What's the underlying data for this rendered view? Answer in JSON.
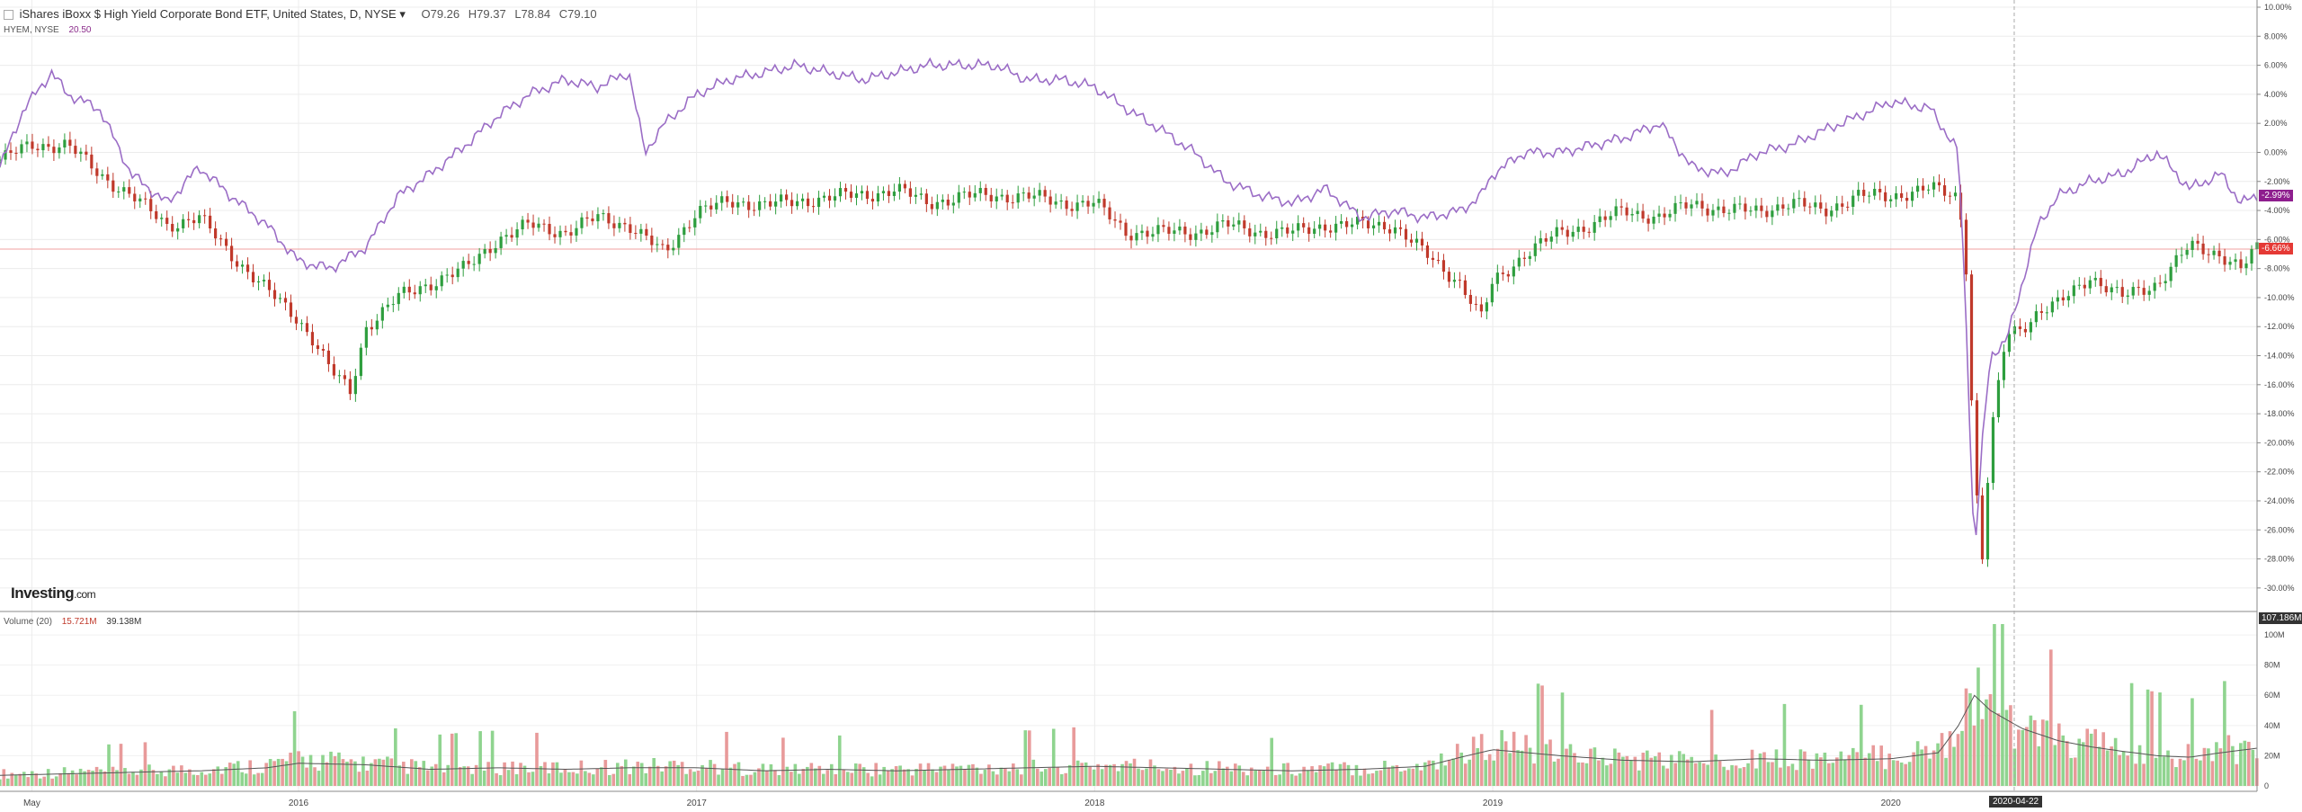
{
  "header": {
    "title": "iShares iBoxx $ High Yield Corporate Bond ETF, United States, D, NYSE",
    "open": "O79.26",
    "high": "H79.37",
    "low": "L78.84",
    "close": "C79.10",
    "compare_symbol": "HYEM, NYSE",
    "compare_value": "20.50"
  },
  "volume_header": {
    "label": "Volume (20)",
    "value1": "15.721M",
    "value2": "39.138M"
  },
  "logo": {
    "text": "Investing",
    "suffix": ".com"
  },
  "badges": {
    "hyem_last": "-2.99%",
    "hyg_last": "-6.66%",
    "volume_top": "107.186M",
    "cursor_date": "2020-04-22"
  },
  "colors": {
    "up": "#2e9e3e",
    "down": "#c0392b",
    "hyem_line": "#9b6dc6",
    "hyg_badge": "#e53935",
    "hyem_badge": "#8e1e8e",
    "volume_up": "#8fd48f",
    "volume_down": "#e89a9a",
    "volume_ma": "#555555"
  },
  "chart_data": {
    "type": "line",
    "title": "iShares iBoxx $ High Yield Corporate Bond ETF, United States, D, NYSE",
    "x_ticks": [
      "May",
      "2016",
      "2017",
      "2018",
      "2019",
      "2020"
    ],
    "y_ticks": [
      "10.00%",
      "8.00%",
      "6.00%",
      "4.00%",
      "2.00%",
      "0.00%",
      "-2.00%",
      "-4.00%",
      "-6.00%",
      "-8.00%",
      "-10.00%",
      "-12.00%",
      "-14.00%",
      "-16.00%",
      "-18.00%",
      "-20.00%",
      "-22.00%",
      "-24.00%",
      "-26.00%",
      "-28.00%",
      "-30.00%"
    ],
    "ylim": [
      -31,
      10
    ],
    "x_range": [
      2015.25,
      2020.92
    ],
    "series": [
      {
        "symbol": "HYG",
        "style": "candlestick",
        "x": [
          2015.25,
          2015.33,
          2015.42,
          2015.5,
          2015.58,
          2015.67,
          2015.75,
          2015.83,
          2015.92,
          2016.0,
          2016.04,
          2016.08,
          2016.13,
          2016.17,
          2016.25,
          2016.33,
          2016.42,
          2016.5,
          2016.58,
          2016.67,
          2016.75,
          2016.83,
          2016.92,
          2017.0,
          2017.08,
          2017.17,
          2017.25,
          2017.33,
          2017.42,
          2017.5,
          2017.58,
          2017.67,
          2017.75,
          2017.83,
          2017.92,
          2018.0,
          2018.08,
          2018.17,
          2018.25,
          2018.33,
          2018.42,
          2018.5,
          2018.58,
          2018.67,
          2018.75,
          2018.83,
          2018.92,
          2018.97,
          2019.0,
          2019.08,
          2019.17,
          2019.25,
          2019.33,
          2019.42,
          2019.5,
          2019.58,
          2019.67,
          2019.75,
          2019.83,
          2019.92,
          2020.0,
          2020.1,
          2020.17,
          2020.19,
          2020.21,
          2020.23,
          2020.25,
          2020.29,
          2020.33,
          2020.37,
          2020.42,
          2020.5,
          2020.58,
          2020.67,
          2020.75,
          2020.83,
          2020.88,
          2020.92
        ],
        "values": [
          -0.5,
          0.5,
          0.5,
          -1.5,
          -3.0,
          -5.0,
          -4.5,
          -7.0,
          -9.5,
          -11.5,
          -13.0,
          -15.0,
          -16.5,
          -12.0,
          -10.0,
          -9.0,
          -8.0,
          -6.0,
          -5.0,
          -5.5,
          -4.5,
          -5.0,
          -7.0,
          -4.0,
          -3.5,
          -3.5,
          -3.5,
          -3.0,
          -3.0,
          -2.5,
          -3.5,
          -3.0,
          -3.0,
          -3.0,
          -3.5,
          -3.5,
          -5.5,
          -5.5,
          -5.5,
          -5.0,
          -5.5,
          -5.5,
          -5.0,
          -5.0,
          -5.0,
          -7.0,
          -9.0,
          -11.5,
          -9.0,
          -7.0,
          -5.5,
          -5.0,
          -4.0,
          -4.5,
          -3.5,
          -4.0,
          -4.0,
          -3.5,
          -4.0,
          -3.0,
          -3.0,
          -2.5,
          -3.0,
          -8.0,
          -22.0,
          -28.0,
          -20.0,
          -12.5,
          -12.0,
          -11.0,
          -10.5,
          -8.5,
          -10.0,
          -9.0,
          -6.5,
          -7.0,
          -8.0,
          -6.66
        ]
      },
      {
        "symbol": "HYEM",
        "style": "line",
        "x": [
          2015.25,
          2015.31,
          2015.38,
          2015.42,
          2015.5,
          2015.58,
          2015.67,
          2015.75,
          2015.83,
          2015.92,
          2016.0,
          2016.08,
          2016.17,
          2016.25,
          2016.33,
          2016.42,
          2016.5,
          2016.58,
          2016.67,
          2016.75,
          2016.83,
          2016.87,
          2016.92,
          2017.0,
          2017.08,
          2017.17,
          2017.25,
          2017.33,
          2017.42,
          2017.5,
          2017.58,
          2017.67,
          2017.75,
          2017.83,
          2017.92,
          2018.0,
          2018.08,
          2018.17,
          2018.25,
          2018.33,
          2018.42,
          2018.5,
          2018.58,
          2018.67,
          2018.75,
          2018.83,
          2018.92,
          2018.97,
          2019.0,
          2019.08,
          2019.17,
          2019.25,
          2019.33,
          2019.42,
          2019.5,
          2019.58,
          2019.67,
          2019.75,
          2019.83,
          2019.92,
          2020.0,
          2020.1,
          2020.17,
          2020.19,
          2020.21,
          2020.23,
          2020.25,
          2020.29,
          2020.33,
          2020.37,
          2020.42,
          2020.5,
          2020.58,
          2020.67,
          2020.75,
          2020.83,
          2020.88,
          2020.92
        ],
        "values": [
          -1.0,
          3.0,
          5.5,
          4.0,
          3.0,
          -1.5,
          -3.5,
          -1.0,
          -3.0,
          -5.0,
          -7.5,
          -8.0,
          -6.5,
          -3.0,
          -1.5,
          0.5,
          2.5,
          4.0,
          5.0,
          4.5,
          5.5,
          0.0,
          2.0,
          4.0,
          5.0,
          5.5,
          6.0,
          5.5,
          5.0,
          5.5,
          6.0,
          6.0,
          6.0,
          5.0,
          5.0,
          4.5,
          3.0,
          1.5,
          0.0,
          -2.0,
          -3.0,
          -3.5,
          -2.5,
          -4.5,
          -4.0,
          -4.5,
          -4.0,
          -3.0,
          -1.5,
          0.0,
          0.0,
          0.5,
          1.0,
          2.0,
          -1.0,
          -1.5,
          0.0,
          0.5,
          1.5,
          2.5,
          3.5,
          3.0,
          0.0,
          -12.0,
          -28.0,
          -20.0,
          -14.0,
          -13.0,
          -9.0,
          -5.0,
          -3.0,
          -2.0,
          -1.5,
          0.0,
          -2.5,
          -1.5,
          -3.5,
          -2.99
        ]
      }
    ],
    "horizontal_line": -6.66,
    "volume": {
      "type": "bar",
      "y_ticks": [
        "100M",
        "80M",
        "60M",
        "40M",
        "20M",
        "0"
      ],
      "ylim": [
        0,
        107.186
      ],
      "unit": "M",
      "ma_period": 20,
      "x": [
        2015.25,
        2015.42,
        2015.58,
        2015.75,
        2015.92,
        2016.0,
        2016.17,
        2016.33,
        2016.5,
        2016.67,
        2016.83,
        2017.0,
        2017.17,
        2017.33,
        2017.5,
        2017.67,
        2017.83,
        2018.0,
        2018.17,
        2018.33,
        2018.5,
        2018.67,
        2018.83,
        2018.92,
        2019.0,
        2019.17,
        2019.33,
        2019.5,
        2019.67,
        2019.83,
        2020.0,
        2020.12,
        2020.17,
        2020.21,
        2020.25,
        2020.33,
        2020.42,
        2020.5,
        2020.58,
        2020.67,
        2020.75,
        2020.83,
        2020.92
      ],
      "values": [
        8,
        9,
        10,
        11,
        14,
        18,
        15,
        12,
        13,
        12,
        13,
        14,
        11,
        12,
        11,
        12,
        13,
        14,
        13,
        12,
        11,
        12,
        14,
        22,
        28,
        22,
        18,
        17,
        20,
        18,
        20,
        24,
        45,
        65,
        55,
        40,
        30,
        28,
        25,
        22,
        20,
        24,
        28
      ],
      "ma_values": [
        7,
        8,
        9,
        10,
        12,
        15,
        14,
        11,
        12,
        11,
        12,
        12,
        10,
        11,
        10,
        11,
        12,
        13,
        12,
        11,
        10,
        11,
        13,
        19,
        24,
        20,
        17,
        16,
        18,
        17,
        18,
        22,
        40,
        60,
        50,
        38,
        30,
        26,
        23,
        20,
        19,
        22,
        25
      ]
    }
  }
}
